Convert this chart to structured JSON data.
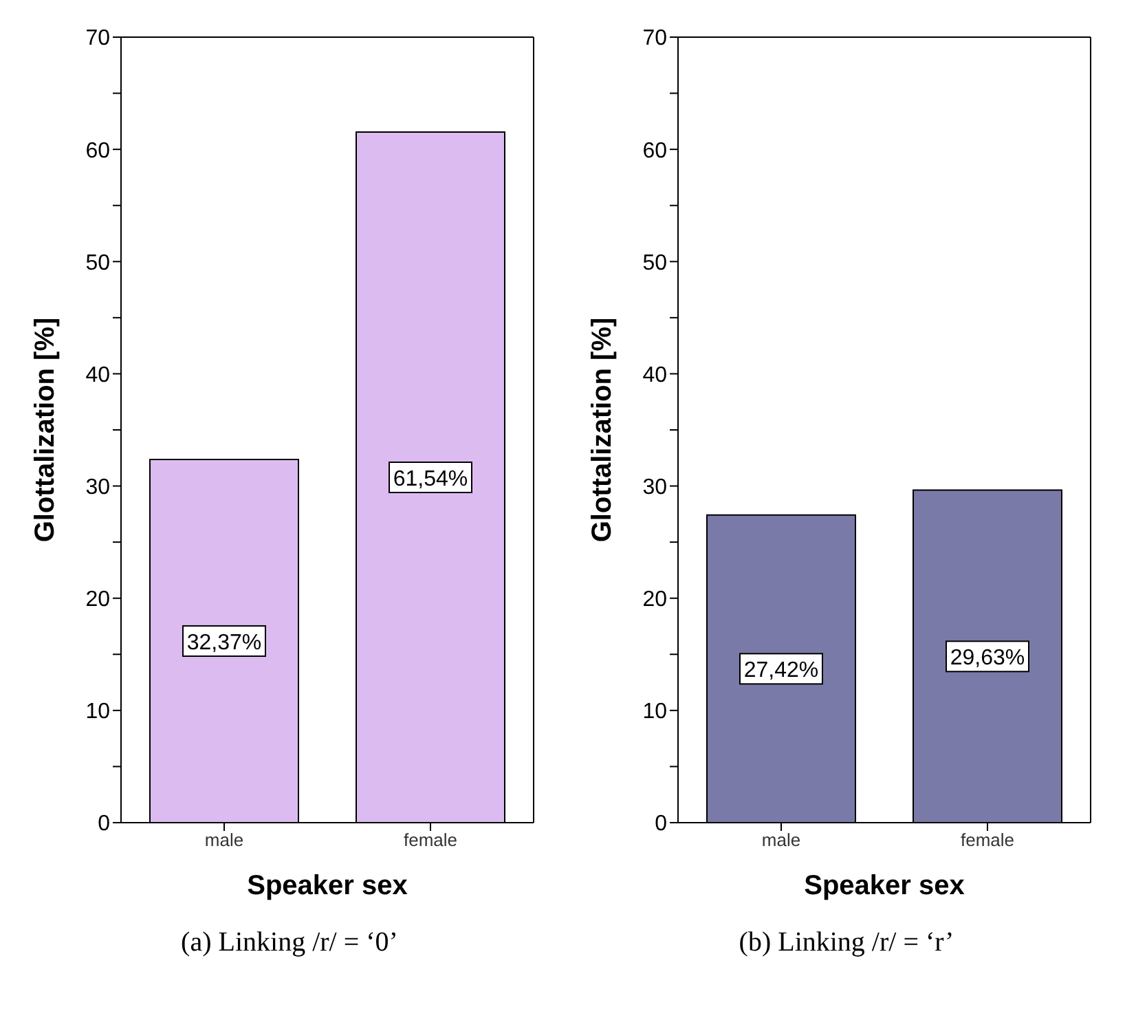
{
  "chart_data": [
    {
      "type": "bar",
      "categories": [
        "male",
        "female"
      ],
      "values": [
        32.37,
        61.54
      ],
      "value_labels": [
        "32,37%",
        "61,54%"
      ],
      "color": "#dcbcf0",
      "xlabel": "Speaker sex",
      "ylabel": "Glottalization [%]",
      "ylim": [
        0,
        70
      ],
      "yticks": [
        0,
        {
          "value": 5,
          "label": null
        },
        10,
        {
          "value": 15,
          "label": null
        },
        20,
        {
          "value": 25,
          "label": null
        },
        30,
        {
          "value": 35,
          "label": null
        },
        40,
        {
          "value": 45,
          "label": null
        },
        50,
        {
          "value": 55,
          "label": null
        },
        60,
        {
          "value": 65,
          "label": null
        },
        70
      ],
      "grid": false,
      "legend": false,
      "annotations": [
        "(a) Linking /r/ = ‘0’"
      ]
    },
    {
      "type": "bar",
      "categories": [
        "male",
        "female"
      ],
      "values": [
        27.42,
        29.63
      ],
      "value_labels": [
        "27,42%",
        "29,63%"
      ],
      "color": "#7a7aa8",
      "xlabel": "Speaker sex",
      "ylabel": "Glottalization [%]",
      "ylim": [
        0,
        70
      ],
      "yticks": [
        0,
        {
          "value": 5,
          "label": null
        },
        10,
        {
          "value": 15,
          "label": null
        },
        20,
        {
          "value": 25,
          "label": null
        },
        30,
        {
          "value": 35,
          "label": null
        },
        40,
        {
          "value": 45,
          "label": null
        },
        50,
        {
          "value": 55,
          "label": null
        },
        60,
        {
          "value": 65,
          "label": null
        },
        70
      ],
      "grid": false,
      "legend": false,
      "annotations": [
        "(b) Linking /r/ = ‘r’"
      ]
    }
  ]
}
